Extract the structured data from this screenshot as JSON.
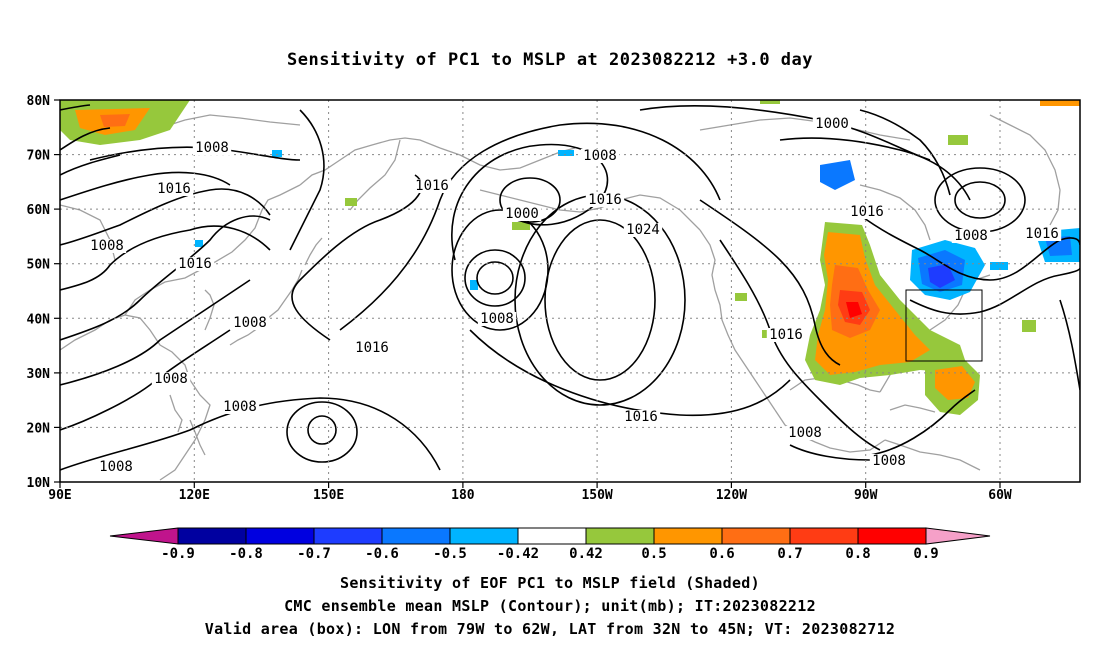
{
  "title": "Sensitivity of PC1 to MSLP at 2023082212 +3.0 day",
  "lat_labels": [
    "80N",
    "70N",
    "60N",
    "50N",
    "40N",
    "30N",
    "20N",
    "10N"
  ],
  "lon_labels": [
    "90E",
    "120E",
    "150E",
    "180",
    "150W",
    "120W",
    "90W",
    "60W"
  ],
  "colorbar": {
    "labels": [
      "-0.9",
      "-0.8",
      "-0.7",
      "-0.6",
      "-0.5",
      "-0.42",
      "0.42",
      "0.5",
      "0.6",
      "0.7",
      "0.8",
      "0.9"
    ],
    "low_arrow_color": "#c0148c",
    "high_arrow_color": "#f5a0c8",
    "colors": [
      "#0000a0",
      "#0000e0",
      "#1e3cff",
      "#0a78ff",
      "#00b4ff",
      "#ffffff",
      "#96c83c",
      "#ff9600",
      "#ff6e14",
      "#ff3c14",
      "#ff0000"
    ]
  },
  "contour_labels": [
    "1000",
    "1000",
    "1008",
    "1008",
    "1008",
    "1008",
    "1008",
    "1008",
    "1008",
    "1008",
    "1008",
    "1008",
    "1008",
    "1016",
    "1016",
    "1016",
    "1016",
    "1016",
    "1016",
    "1016",
    "1016",
    "1016",
    "1024"
  ],
  "captions": {
    "line1": "Sensitivity of EOF PC1 to MSLP field (Shaded)",
    "line2": "CMC ensemble mean MSLP (Contour); unit(mb); IT:2023082212",
    "line3": "Valid area (box): LON from 79W to 62W, LAT from 32N to 45N; VT: 2023082712"
  },
  "valid_box": {
    "lon_min": -79,
    "lon_max": -62,
    "lat_min": 32,
    "lat_max": 45
  },
  "colors": {
    "coast": "#a0a0a0",
    "contour": "#000000",
    "grid": "#888888"
  }
}
